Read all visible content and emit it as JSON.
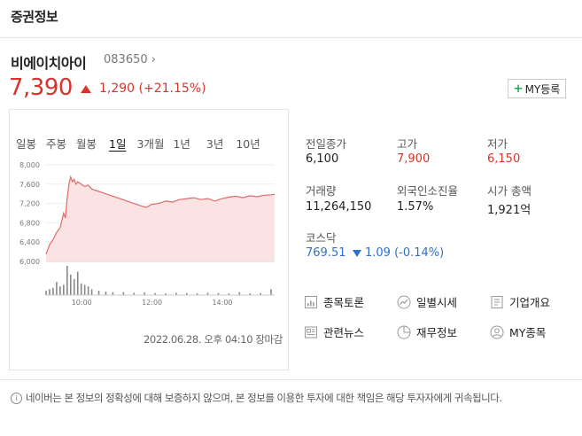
{
  "header": {
    "title": "증권정보"
  },
  "stock": {
    "name": "비에이치아이",
    "code": "083650",
    "code_chevron": "›",
    "price": "7,390",
    "change": "1,290",
    "change_pct": "(+21.15%)",
    "direction": "up",
    "my_button": {
      "plus": "+",
      "label": "MY등록"
    }
  },
  "period_tabs": [
    {
      "label": "일봉",
      "active": false
    },
    {
      "label": "주봉",
      "active": false
    },
    {
      "label": "월봉",
      "active": false
    },
    {
      "label": "1일",
      "active": true
    },
    {
      "label": "3개월",
      "active": false
    },
    {
      "label": "1년",
      "active": false
    },
    {
      "label": "3년",
      "active": false
    },
    {
      "label": "10년",
      "active": false
    }
  ],
  "chart_data": {
    "type": "area",
    "title": "",
    "xlabel": "",
    "ylabel": "",
    "ylim": [
      6000,
      8000
    ],
    "y_ticks": [
      "8,000",
      "7,600",
      "7,200",
      "6,800",
      "6,400",
      "6,000"
    ],
    "y_tick_values": [
      8000,
      7600,
      7200,
      6800,
      6400,
      6000
    ],
    "x_ticks": [
      "10:00",
      "12:00",
      "14:00"
    ],
    "x_tick_hours": [
      10,
      12,
      14
    ],
    "x_range_hours": [
      9,
      15.5
    ],
    "colors": {
      "line": "#e26a6a",
      "fill": "#fbe3e3",
      "volume": "#888888"
    },
    "series": [
      {
        "x": [
          9.0,
          9.1,
          9.2,
          9.3,
          9.4,
          9.5,
          9.55,
          9.6,
          9.65,
          9.7,
          9.75,
          9.8,
          9.85,
          9.9,
          10.0,
          10.1,
          10.2,
          10.3,
          10.5,
          10.7,
          10.9,
          11.1,
          11.3,
          11.5,
          11.7,
          11.85,
          12.0,
          12.2,
          12.4,
          12.6,
          12.8,
          13.0,
          13.2,
          13.4,
          13.6,
          13.8,
          14.0,
          14.2,
          14.4,
          14.6,
          14.8,
          15.0,
          15.2,
          15.4,
          15.5
        ],
        "values": [
          6150,
          6350,
          6450,
          6600,
          6700,
          7000,
          6900,
          7300,
          7600,
          7750,
          7650,
          7700,
          7600,
          7650,
          7600,
          7550,
          7580,
          7500,
          7450,
          7400,
          7350,
          7300,
          7250,
          7200,
          7150,
          7120,
          7180,
          7200,
          7250,
          7230,
          7280,
          7300,
          7320,
          7280,
          7300,
          7250,
          7300,
          7330,
          7350,
          7320,
          7360,
          7340,
          7370,
          7380,
          7390
        ]
      }
    ],
    "volume": {
      "x": [
        9.0,
        9.1,
        9.2,
        9.3,
        9.4,
        9.5,
        9.6,
        9.7,
        9.8,
        9.9,
        10.0,
        10.1,
        10.2,
        10.3,
        10.5,
        10.7,
        10.9,
        11.2,
        11.5,
        11.8,
        12.1,
        12.4,
        12.7,
        13.0,
        13.3,
        13.6,
        13.9,
        14.2,
        14.5,
        14.8,
        15.1,
        15.4
      ],
      "values": [
        15,
        20,
        25,
        45,
        30,
        35,
        100,
        70,
        55,
        80,
        40,
        35,
        30,
        20,
        15,
        12,
        10,
        10,
        8,
        9,
        7,
        6,
        8,
        7,
        6,
        8,
        7,
        6,
        10,
        6,
        7,
        20
      ]
    }
  },
  "timestamp": "2022.06.28. 오후 04:10 장마감",
  "stats": {
    "prev_close": {
      "label": "전일종가",
      "value": "6,100"
    },
    "high": {
      "label": "고가",
      "value": "7,900"
    },
    "low": {
      "label": "저가",
      "value": "6,150"
    },
    "volume": {
      "label": "거래량",
      "value": "11,264,150"
    },
    "foreign": {
      "label": "외국인소진율",
      "value": "1.57%"
    },
    "mcap": {
      "label": "시가 총액",
      "value": "1,921억"
    },
    "index": {
      "label": "코스닥",
      "value": "769.51",
      "change": "1.09 (-0.14%)",
      "direction": "down"
    }
  },
  "links": [
    {
      "label": "종목토론",
      "icon": "discussion-icon"
    },
    {
      "label": "일별시세",
      "icon": "daily-price-icon"
    },
    {
      "label": "기업개요",
      "icon": "company-overview-icon"
    },
    {
      "label": "관련뉴스",
      "icon": "news-icon"
    },
    {
      "label": "재무정보",
      "icon": "finance-icon"
    },
    {
      "label": "MY종목",
      "icon": "my-stock-icon"
    }
  ],
  "footer": {
    "info_glyph": "i",
    "disclaimer": "네이버는 본 정보의 정확성에 대해 보증하지 않으며, 본 정보를 이용한 투자에 대한 책임은 해당 투자자에게 귀속됩니다."
  }
}
